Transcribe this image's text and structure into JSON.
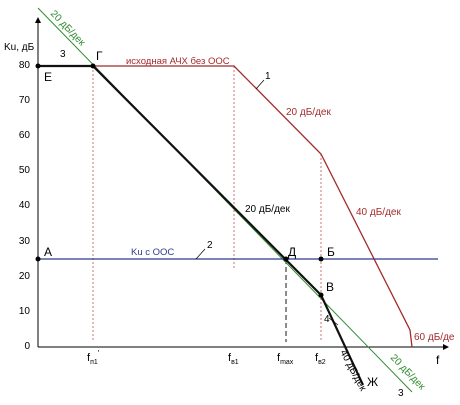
{
  "axes": {
    "y_label": "Ku, дБ",
    "x_label": "f",
    "y_ticks": [
      "80",
      "70",
      "60",
      "50",
      "40",
      "30",
      "20",
      "10",
      "0"
    ],
    "x_tick_labels": [
      "f",
      "f",
      "f",
      "f"
    ],
    "x_tick_subs": [
      "п1",
      "в1",
      "max",
      "в2"
    ],
    "x_tick_primes": [
      "'",
      "",
      "",
      ""
    ]
  },
  "points": {
    "A": "А",
    "B": "Б",
    "V": "В",
    "G": "Г",
    "D": "Д",
    "E": "Е",
    "Zh": "Ж"
  },
  "labels": {
    "open_loop": "исходная АЧХ без ООС",
    "closed_loop": "Ku с ООС",
    "slope_20_red": "20 дБ/дек",
    "slope_40_red": "40 дБ/дек",
    "slope_60_red": "60 дБ/де",
    "slope_20_black": "20 дБ/дек",
    "slope_40_black": "40 дБ/дек",
    "green_top": "20 дБ/дек",
    "green_bottom": "20 дБ/дек",
    "num_1": "1",
    "num_2": "2",
    "num_3_top": "3",
    "num_3_bottom": "3",
    "num_4": "4"
  },
  "colors": {
    "open_loop": "#a52a2a",
    "closed_loop": "#2e3a8c",
    "feedback_line": "#2e8b2e",
    "result": "#111111",
    "guides": "#c0504d"
  }
}
